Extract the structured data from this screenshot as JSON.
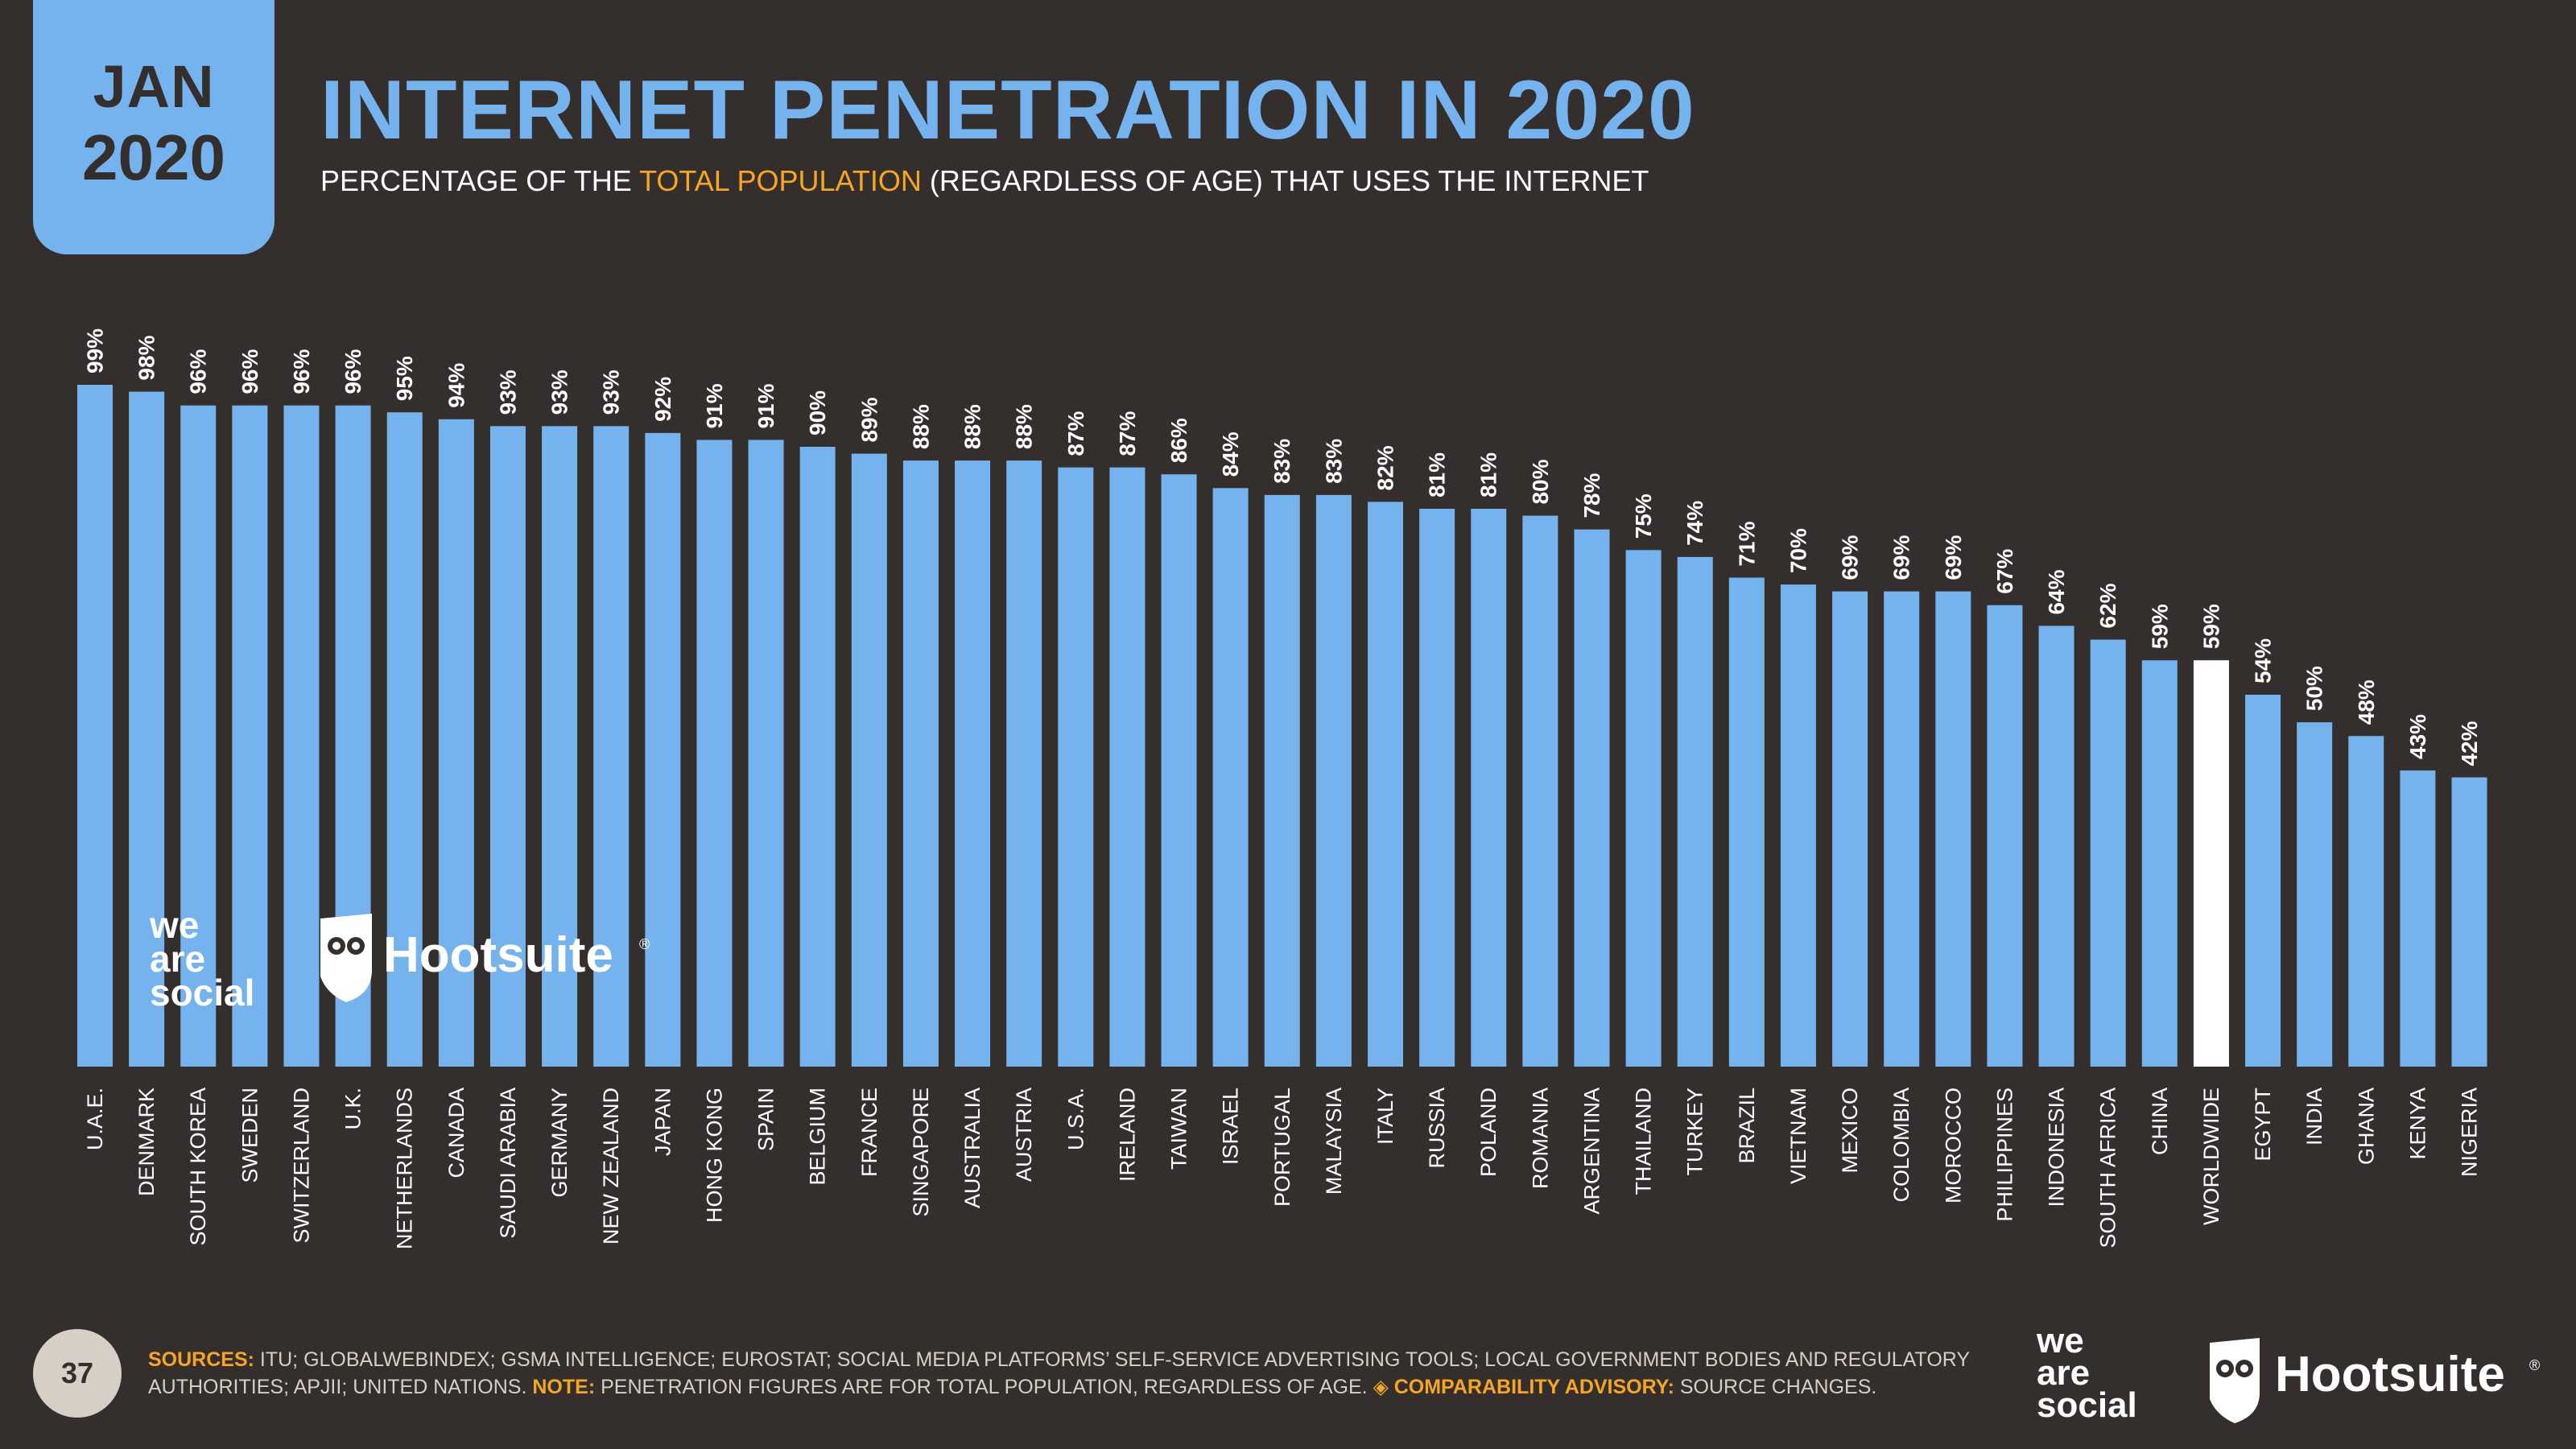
{
  "badge": {
    "month": "JAN",
    "year": "2020"
  },
  "header": {
    "title": "INTERNET PENETRATION IN 2020",
    "subtitle_pre": "PERCENTAGE OF THE ",
    "subtitle_highlight": "TOTAL POPULATION",
    "subtitle_post": " (REGARDLESS OF AGE) THAT USES THE INTERNET"
  },
  "colors": {
    "bar": "#75b3ee",
    "highlight_bar": "#ffffff",
    "background": "#342f2c",
    "accent": "#f5a623"
  },
  "chart_data": {
    "type": "bar",
    "categories": [
      "U.A.E.",
      "DENMARK",
      "SOUTH KOREA",
      "SWEDEN",
      "SWITZERLAND",
      "U.K.",
      "NETHERLANDS",
      "CANADA",
      "SAUDI ARABIA",
      "GERMANY",
      "NEW ZEALAND",
      "JAPAN",
      "HONG KONG",
      "SPAIN",
      "BELGIUM",
      "FRANCE",
      "SINGAPORE",
      "AUSTRALIA",
      "AUSTRIA",
      "U.S.A.",
      "IRELAND",
      "TAIWAN",
      "ISRAEL",
      "PORTUGAL",
      "MALAYSIA",
      "ITALY",
      "RUSSIA",
      "POLAND",
      "ROMANIA",
      "ARGENTINA",
      "THAILAND",
      "TURKEY",
      "BRAZIL",
      "VIETNAM",
      "MEXICO",
      "COLOMBIA",
      "MOROCCO",
      "PHILIPPINES",
      "INDONESIA",
      "SOUTH AFRICA",
      "CHINA",
      "WORLDWIDE",
      "EGYPT",
      "INDIA",
      "GHANA",
      "KENYA",
      "NIGERIA"
    ],
    "values": [
      99,
      98,
      96,
      96,
      96,
      96,
      95,
      94,
      93,
      93,
      93,
      92,
      91,
      91,
      90,
      89,
      88,
      88,
      88,
      87,
      87,
      86,
      84,
      83,
      83,
      82,
      81,
      81,
      80,
      78,
      75,
      74,
      71,
      70,
      69,
      69,
      69,
      67,
      64,
      62,
      59,
      59,
      54,
      50,
      48,
      43,
      42
    ],
    "value_labels": [
      "99%",
      "98%",
      "96%",
      "96%",
      "96%",
      "96%",
      "95%",
      "94%",
      "93%",
      "93%",
      "93%",
      "92%",
      "91%",
      "91%",
      "90%",
      "89%",
      "88%",
      "88%",
      "88%",
      "87%",
      "87%",
      "86%",
      "84%",
      "83%",
      "83%",
      "82%",
      "81%",
      "81%",
      "80%",
      "78%",
      "75%",
      "74%",
      "71%",
      "70%",
      "69%",
      "69%",
      "69%",
      "67%",
      "64%",
      "62%",
      "59%",
      "59%",
      "54%",
      "50%",
      "48%",
      "43%",
      "42%"
    ],
    "highlight": "WORLDWIDE",
    "ylim": [
      0,
      100
    ],
    "grid": false,
    "legend": "none"
  },
  "brand": {
    "we": "we",
    "are": "are",
    "social": "social",
    "hootsuite": "Hootsuite",
    "registered": "®"
  },
  "footer": {
    "page_number": "37",
    "sources_label": "SOURCES:",
    "sources_text": " ITU; GLOBALWEBINDEX; GSMA INTELLIGENCE; EUROSTAT; SOCIAL MEDIA PLATFORMS’ SELF-SERVICE ADVERTISING TOOLS; LOCAL GOVERNMENT BODIES AND REGULATORY AUTHORITIES; APJII; UNITED NATIONS. ",
    "note_label": "NOTE:",
    "note_text": " PENETRATION FIGURES ARE FOR TOTAL POPULATION, REGARDLESS OF AGE. ",
    "advisory_label": "◈ COMPARABILITY ADVISORY:",
    "advisory_text": " SOURCE CHANGES."
  }
}
